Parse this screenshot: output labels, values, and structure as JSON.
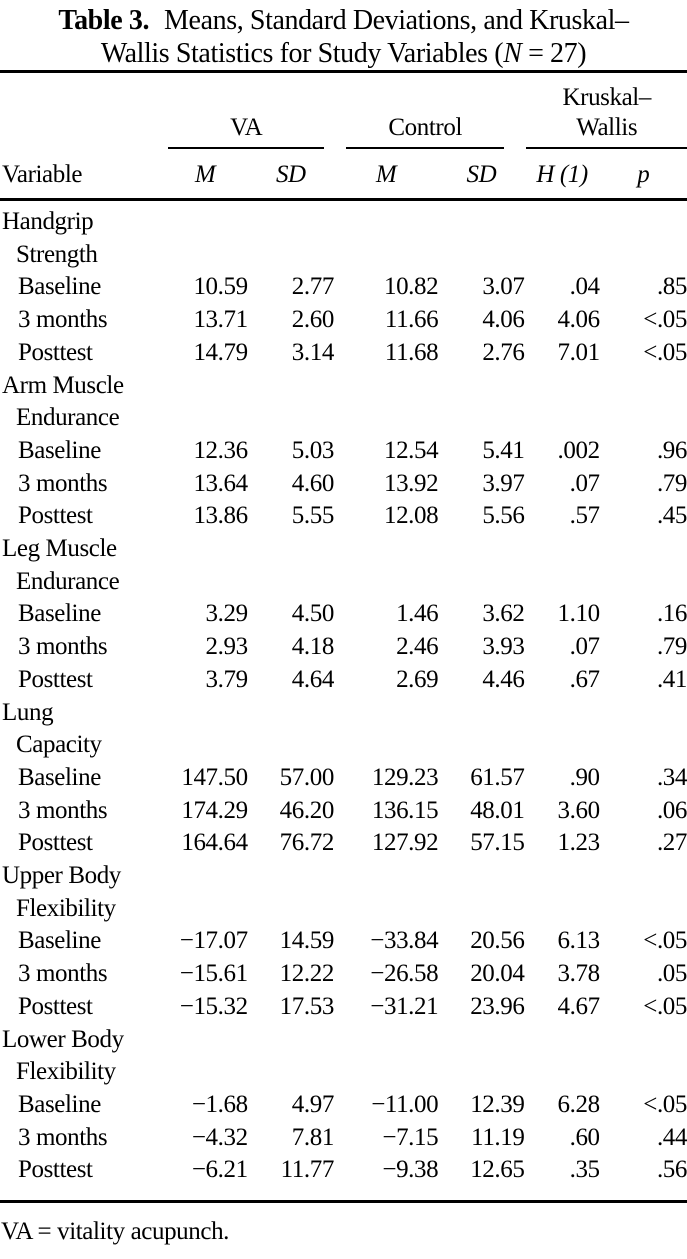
{
  "title": {
    "label": "Table 3.",
    "line1": "Means, Standard Deviations, and Kruskal–",
    "line2_before_n": "Wallis Statistics for Study Variables (",
    "line2_n": "N",
    "line2_after_n": " = 27)"
  },
  "header": {
    "variable_label": "Variable",
    "groups": [
      {
        "label": "VA"
      },
      {
        "label": "Control"
      },
      {
        "line1": "Kruskal–",
        "line2": "Wallis"
      }
    ],
    "subheaders": [
      "M",
      "SD",
      "M",
      "SD",
      "H (1)",
      "p"
    ]
  },
  "sections": [
    {
      "name_lines": [
        "Handgrip",
        "Strength"
      ],
      "rows": [
        {
          "label": "Baseline",
          "values": [
            "10.59",
            "2.77",
            "10.82",
            "3.07",
            ".04",
            ".85"
          ]
        },
        {
          "label": "3 months",
          "values": [
            "13.71",
            "2.60",
            "11.66",
            "4.06",
            "4.06",
            "<.05"
          ]
        },
        {
          "label": "Posttest",
          "values": [
            "14.79",
            "3.14",
            "11.68",
            "2.76",
            "7.01",
            "<.05"
          ]
        }
      ]
    },
    {
      "name_lines": [
        "Arm Muscle",
        "Endurance"
      ],
      "rows": [
        {
          "label": "Baseline",
          "values": [
            "12.36",
            "5.03",
            "12.54",
            "5.41",
            ".002",
            ".96"
          ]
        },
        {
          "label": "3 months",
          "values": [
            "13.64",
            "4.60",
            "13.92",
            "3.97",
            ".07",
            ".79"
          ]
        },
        {
          "label": "Posttest",
          "values": [
            "13.86",
            "5.55",
            "12.08",
            "5.56",
            ".57",
            ".45"
          ]
        }
      ]
    },
    {
      "name_lines": [
        "Leg Muscle",
        "Endurance"
      ],
      "rows": [
        {
          "label": "Baseline",
          "values": [
            "3.29",
            "4.50",
            "1.46",
            "3.62",
            "1.10",
            ".16"
          ]
        },
        {
          "label": "3 months",
          "values": [
            "2.93",
            "4.18",
            "2.46",
            "3.93",
            ".07",
            ".79"
          ]
        },
        {
          "label": "Posttest",
          "values": [
            "3.79",
            "4.64",
            "2.69",
            "4.46",
            ".67",
            ".41"
          ]
        }
      ]
    },
    {
      "name_lines": [
        "Lung",
        "Capacity"
      ],
      "rows": [
        {
          "label": "Baseline",
          "values": [
            "147.50",
            "57.00",
            "129.23",
            "61.57",
            ".90",
            ".34"
          ]
        },
        {
          "label": "3 months",
          "values": [
            "174.29",
            "46.20",
            "136.15",
            "48.01",
            "3.60",
            ".06"
          ]
        },
        {
          "label": "Posttest",
          "values": [
            "164.64",
            "76.72",
            "127.92",
            "57.15",
            "1.23",
            ".27"
          ]
        }
      ]
    },
    {
      "name_lines": [
        "Upper Body",
        "Flexibility"
      ],
      "rows": [
        {
          "label": "Baseline",
          "values": [
            "−17.07",
            "14.59",
            "−33.84",
            "20.56",
            "6.13",
            "<.05"
          ]
        },
        {
          "label": "3 months",
          "values": [
            "−15.61",
            "12.22",
            "−26.58",
            "20.04",
            "3.78",
            ".05"
          ]
        },
        {
          "label": "Posttest",
          "values": [
            "−15.32",
            "17.53",
            "−31.21",
            "23.96",
            "4.67",
            "<.05"
          ]
        }
      ]
    },
    {
      "name_lines": [
        "Lower Body",
        "Flexibility"
      ],
      "rows": [
        {
          "label": "Baseline",
          "values": [
            "−1.68",
            "4.97",
            "−11.00",
            "12.39",
            "6.28",
            "<.05"
          ]
        },
        {
          "label": "3 months",
          "values": [
            "−4.32",
            "7.81",
            "−7.15",
            "11.19",
            ".60",
            ".44"
          ]
        },
        {
          "label": "Posttest",
          "values": [
            "−6.21",
            "11.77",
            "−9.38",
            "12.65",
            ".35",
            ".56"
          ]
        }
      ]
    }
  ],
  "footnote": "VA = vitality acupunch."
}
